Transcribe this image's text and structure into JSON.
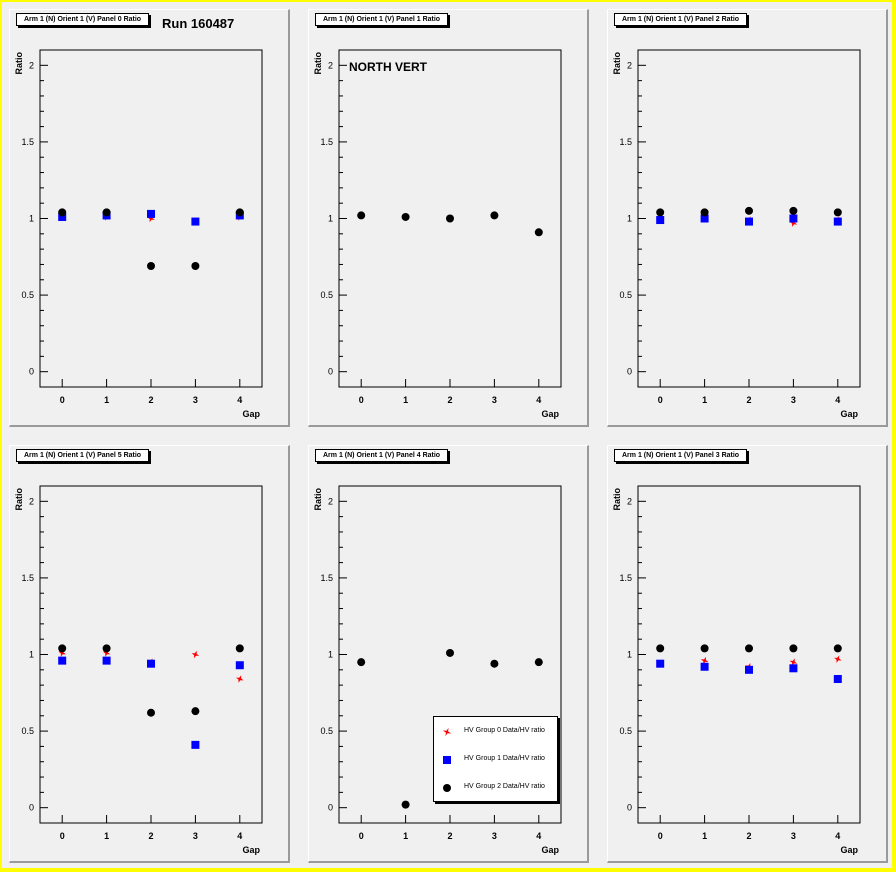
{
  "canvas": {
    "run_label": "Run 160487",
    "north_label": "NORTH VERT"
  },
  "style": {
    "background": "#f0f0f0",
    "frame_color": "#ffff00",
    "series_colors": [
      "#ff0000",
      "#0000ff",
      "#000000"
    ],
    "series_markers": [
      "star",
      "square",
      "circle"
    ]
  },
  "legend": {
    "entries": [
      "HV Group 0 Data/HV ratio",
      "HV Group 1 Data/HV ratio",
      "HV Group 2 Data/HV ratio"
    ]
  },
  "chart_data": [
    {
      "type": "scatter",
      "title": "Arm 1 (N) Orient 1 (V) Panel 0 Ratio",
      "xlabel": "Gap",
      "ylabel": "Ratio",
      "x_ticks": [
        "0",
        "1",
        "2",
        "3",
        "4"
      ],
      "y_ticks": [
        "0",
        "0.5",
        "1",
        "1.5",
        "2"
      ],
      "xlim": [
        -0.5,
        4.5
      ],
      "ylim": [
        -0.1,
        2.1
      ],
      "x": [
        0,
        1,
        2,
        3,
        4
      ],
      "series": [
        {
          "values": [
            1.03,
            1.01,
            1.0,
            null,
            1.01
          ]
        },
        {
          "values": [
            1.01,
            1.02,
            1.03,
            0.98,
            1.02
          ]
        },
        {
          "values": [
            1.04,
            1.04,
            0.69,
            0.69,
            1.04
          ]
        }
      ]
    },
    {
      "type": "scatter",
      "title": "Arm 1 (N) Orient 1 (V) Panel 1 Ratio",
      "xlabel": "Gap",
      "ylabel": "Ratio",
      "x_ticks": [
        "0",
        "1",
        "2",
        "3",
        "4"
      ],
      "y_ticks": [
        "0",
        "0.5",
        "1",
        "1.5",
        "2"
      ],
      "xlim": [
        -0.5,
        4.5
      ],
      "ylim": [
        -0.1,
        2.1
      ],
      "x": [
        0,
        1,
        2,
        3,
        4
      ],
      "series": [
        {
          "values": [
            null,
            null,
            null,
            null,
            null
          ]
        },
        {
          "values": [
            null,
            null,
            null,
            null,
            null
          ]
        },
        {
          "values": [
            1.02,
            1.01,
            1.0,
            1.02,
            0.91
          ]
        }
      ]
    },
    {
      "type": "scatter",
      "title": "Arm 1 (N) Orient 1 (V) Panel 2 Ratio",
      "xlabel": "Gap",
      "ylabel": "Ratio",
      "x_ticks": [
        "0",
        "1",
        "2",
        "3",
        "4"
      ],
      "y_ticks": [
        "0",
        "0.5",
        "1",
        "1.5",
        "2"
      ],
      "xlim": [
        -0.5,
        4.5
      ],
      "ylim": [
        -0.1,
        2.1
      ],
      "x": [
        0,
        1,
        2,
        3,
        4
      ],
      "series": [
        {
          "values": [
            1.0,
            1.0,
            0.99,
            0.97,
            0.99
          ]
        },
        {
          "values": [
            0.99,
            1.0,
            0.98,
            1.0,
            0.98
          ]
        },
        {
          "values": [
            1.04,
            1.04,
            1.05,
            1.05,
            1.04
          ]
        }
      ]
    },
    {
      "type": "scatter",
      "title": "Arm 1 (N) Orient 1 (V) Panel 5 Ratio",
      "xlabel": "Gap",
      "ylabel": "Ratio",
      "x_ticks": [
        "0",
        "1",
        "2",
        "3",
        "4"
      ],
      "y_ticks": [
        "0",
        "0.5",
        "1",
        "1.5",
        "2"
      ],
      "xlim": [
        -0.5,
        4.5
      ],
      "ylim": [
        -0.1,
        2.1
      ],
      "x": [
        0,
        1,
        2,
        3,
        4
      ],
      "series": [
        {
          "values": [
            1.01,
            1.01,
            0.95,
            1.0,
            0.84
          ]
        },
        {
          "values": [
            0.96,
            0.96,
            0.94,
            0.41,
            0.93
          ]
        },
        {
          "values": [
            1.04,
            1.04,
            0.62,
            0.63,
            1.04
          ]
        }
      ]
    },
    {
      "type": "scatter",
      "title": "Arm 1 (N) Orient 1 (V) Panel 4 Ratio",
      "xlabel": "Gap",
      "ylabel": "Ratio",
      "x_ticks": [
        "0",
        "1",
        "2",
        "3",
        "4"
      ],
      "y_ticks": [
        "0",
        "0.5",
        "1",
        "1.5",
        "2"
      ],
      "xlim": [
        -0.5,
        4.5
      ],
      "ylim": [
        -0.1,
        2.1
      ],
      "x": [
        0,
        1,
        2,
        3,
        4
      ],
      "legend_position": "bottom-right",
      "series": [
        {
          "values": [
            null,
            null,
            null,
            null,
            null
          ]
        },
        {
          "values": [
            null,
            null,
            null,
            null,
            null
          ]
        },
        {
          "values": [
            0.95,
            0.02,
            1.01,
            0.94,
            0.95
          ]
        }
      ]
    },
    {
      "type": "scatter",
      "title": "Arm 1 (N) Orient 1 (V) Panel 3 Ratio",
      "xlabel": "Gap",
      "ylabel": "Ratio",
      "x_ticks": [
        "0",
        "1",
        "2",
        "3",
        "4"
      ],
      "y_ticks": [
        "0",
        "0.5",
        "1",
        "1.5",
        "2"
      ],
      "xlim": [
        -0.5,
        4.5
      ],
      "ylim": [
        -0.1,
        2.1
      ],
      "x": [
        0,
        1,
        2,
        3,
        4
      ],
      "series": [
        {
          "values": [
            0.94,
            0.96,
            0.92,
            0.95,
            0.97
          ]
        },
        {
          "values": [
            0.94,
            0.92,
            0.9,
            0.91,
            0.84
          ]
        },
        {
          "values": [
            1.04,
            1.04,
            1.04,
            1.04,
            1.04
          ]
        }
      ]
    }
  ]
}
